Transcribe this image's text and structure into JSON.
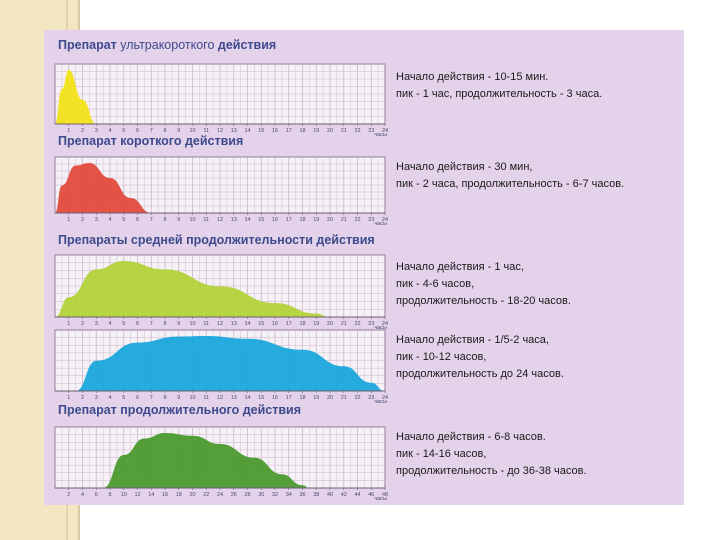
{
  "colors": {
    "background": "#e4d2ea",
    "grid_bg": "#f6f1f6",
    "grid_line": "#c9b7cc",
    "title_blue": "#3d4a8c"
  },
  "chart_data": [
    {
      "type": "area",
      "title": "Препарат ультракороткого действия",
      "title_parts": [
        "Препарат ",
        "ультракороткого",
        " действия"
      ],
      "xlabel": "часы",
      "x_ticks": [
        "1",
        "2",
        "3",
        "4",
        "5",
        "6",
        "7",
        "8",
        "9",
        "10",
        "11",
        "12",
        "13",
        "14",
        "15",
        "16",
        "17",
        "18",
        "19",
        "20",
        "21",
        "22",
        "23",
        "24"
      ],
      "xlim": [
        0,
        24
      ],
      "color": "#f2e21a",
      "x": [
        0,
        0.5,
        1,
        2,
        3
      ],
      "y": [
        0,
        0.65,
        1.0,
        0.45,
        0
      ],
      "description": [
        "Начало действия - 10-15 мин.",
        "пик - 1 час, продолжительность - 3 часа."
      ]
    },
    {
      "type": "area",
      "title": "Препарат короткого действия",
      "xlabel": "часы",
      "x_ticks": [
        "1",
        "2",
        "3",
        "4",
        "5",
        "6",
        "7",
        "8",
        "9",
        "10",
        "11",
        "12",
        "13",
        "14",
        "15",
        "16",
        "17",
        "18",
        "19",
        "20",
        "21",
        "22",
        "23",
        "24"
      ],
      "xlim": [
        0,
        24
      ],
      "color": "#e24a3c",
      "x": [
        0,
        0.5,
        1.5,
        2.5,
        4,
        5.5,
        7
      ],
      "y": [
        0,
        0.55,
        0.95,
        1.0,
        0.7,
        0.3,
        0
      ],
      "description": [
        "Начало действия - 30 мин,",
        "пик - 2 часа, продолжительность - 6-7 часов."
      ]
    },
    {
      "type": "area",
      "title": "Препараты средней продолжительности действия",
      "xlabel": "часы",
      "x_ticks": [
        "1",
        "2",
        "3",
        "4",
        "5",
        "6",
        "7",
        "8",
        "9",
        "10",
        "11",
        "12",
        "13",
        "14",
        "15",
        "16",
        "17",
        "18",
        "19",
        "20",
        "21",
        "22",
        "23",
        "24"
      ],
      "xlim": [
        0,
        24
      ],
      "color": "#b3d23a",
      "x": [
        0,
        1,
        3,
        5,
        8,
        12,
        16,
        19,
        20
      ],
      "y": [
        0,
        0.35,
        0.85,
        1.0,
        0.85,
        0.55,
        0.25,
        0.06,
        0
      ],
      "description": [
        "Начало действия - 1 час,",
        "пик - 4-6 часов,",
        "продолжительность - 18-20 часов."
      ]
    },
    {
      "type": "area",
      "title": "",
      "xlabel": "часы",
      "x_ticks": [
        "1",
        "2",
        "3",
        "4",
        "5",
        "6",
        "7",
        "8",
        "9",
        "10",
        "11",
        "12",
        "13",
        "14",
        "15",
        "16",
        "17",
        "18",
        "19",
        "20",
        "21",
        "22",
        "23",
        "24"
      ],
      "xlim": [
        0,
        24
      ],
      "color": "#1aa6dc",
      "x": [
        1.5,
        3,
        6,
        9,
        11,
        14,
        18,
        21,
        23,
        24
      ],
      "y": [
        0,
        0.55,
        0.88,
        0.99,
        1.0,
        0.95,
        0.75,
        0.45,
        0.15,
        0
      ],
      "description": [
        "Начало действия - 1/5-2 часа,",
        "пик - 10-12 часов,",
        "продолжительность до 24 часов."
      ]
    },
    {
      "type": "area",
      "title": "Препарат продолжительного действия",
      "xlabel": "часы",
      "x_ticks": [
        "2",
        "4",
        "6",
        "8",
        "10",
        "12",
        "14",
        "16",
        "18",
        "20",
        "22",
        "24",
        "26",
        "28",
        "30",
        "32",
        "34",
        "36",
        "38",
        "40",
        "42",
        "44",
        "46",
        "48"
      ],
      "xlim": [
        0,
        48
      ],
      "color": "#4b9a2f",
      "x": [
        7,
        10,
        13,
        16,
        20,
        24,
        29,
        33,
        36,
        37
      ],
      "y": [
        0,
        0.6,
        0.9,
        1.0,
        0.95,
        0.8,
        0.55,
        0.25,
        0.05,
        0
      ],
      "description": [
        "Начало действия - 6-8 часов.",
        "пик - 14-16 часов,",
        "продолжительность - до 36-38 часов."
      ]
    }
  ]
}
